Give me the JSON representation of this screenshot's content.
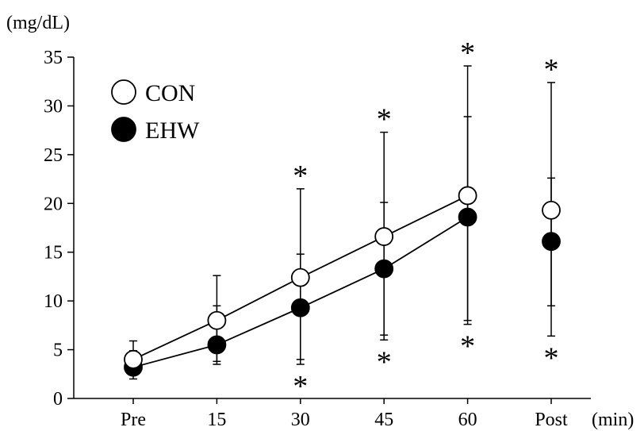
{
  "chart_data": {
    "type": "line",
    "title": "",
    "ylabel": "(mg/dL)",
    "xlabel": "(min)",
    "categories": [
      "Pre",
      "15",
      "30",
      "45",
      "60",
      "Post"
    ],
    "ylim": [
      0,
      35
    ],
    "yticks": [
      0,
      5,
      10,
      15,
      20,
      25,
      30,
      35
    ],
    "legend_position": "top-left",
    "grid": false,
    "series": [
      {
        "name": "CON",
        "marker": "open-circle",
        "color": "#000000",
        "values": [
          4.0,
          8.0,
          12.4,
          16.6,
          20.8,
          19.3
        ],
        "err_upper": [
          5.9,
          12.6,
          14.8,
          20.1,
          28.9,
          22.6
        ],
        "err_lower": [
          3.6,
          3.8,
          4.0,
          6.5,
          8.0,
          9.5
        ],
        "connected": [
          true,
          true,
          true,
          true,
          true,
          false
        ]
      },
      {
        "name": "EHW",
        "marker": "filled-circle",
        "color": "#000000",
        "values": [
          3.2,
          5.5,
          9.3,
          13.3,
          18.6,
          16.1
        ],
        "err_upper": [
          4.9,
          9.5,
          21.5,
          27.3,
          34.1,
          32.4
        ],
        "err_lower": [
          2.0,
          3.5,
          3.5,
          6.0,
          7.6,
          6.4
        ],
        "connected": [
          true,
          true,
          true,
          true,
          true,
          false
        ]
      }
    ],
    "annotations": {
      "text": "*",
      "upper_categories": [
        "30",
        "45",
        "60",
        "Post"
      ],
      "lower_categories": [
        "30",
        "45",
        "60",
        "Post"
      ]
    }
  }
}
